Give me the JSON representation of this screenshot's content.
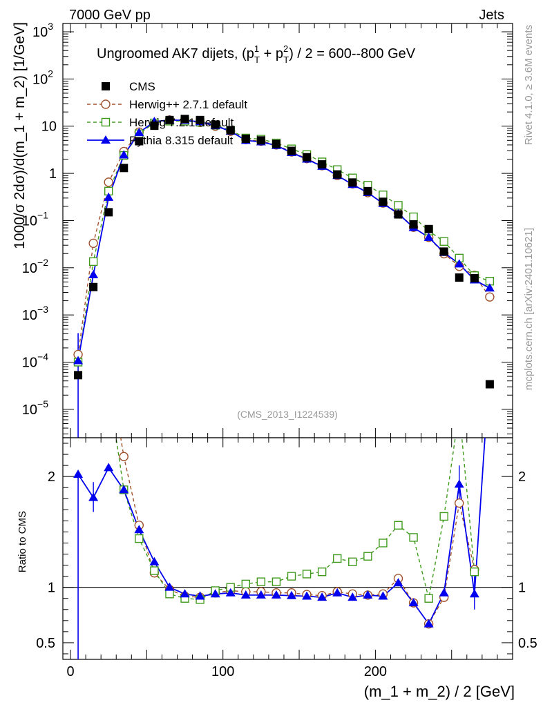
{
  "chart_data": {
    "type": "scatter",
    "header_left": "7000 GeV pp",
    "header_right": "Jets",
    "title": "Ungroomed AK7 dijets, (p",
    "title_sup1": "1",
    "title_sub1": "T",
    "title_mid": " + p",
    "title_sup2": "2",
    "title_sub2": "T",
    "title_end": ") / 2 = 600--800 GeV",
    "analysis": "(CMS_2013_I1224539)",
    "side_label_top": "Rivet 4.1.0, ≥ 3.6M events",
    "side_label_bottom": "mcplots.cern.ch [arXiv:2401.10621]",
    "xlabel": "(m_1 + m_2) / 2 [GeV]",
    "ylabel_main": "1000/σ   2dσ)/d(m_1 + m_2) [1/GeV]",
    "ylabel_ratio": "Ratio to CMS",
    "xlim": [
      -5,
      290
    ],
    "ylim_main": [
      2.5e-06,
      1500
    ],
    "ylim_ratio": [
      0.35,
      2.35
    ],
    "x_ticks": [
      {
        "value": 0,
        "label": "0"
      },
      {
        "value": 100,
        "label": "100"
      },
      {
        "value": 200,
        "label": "200"
      }
    ],
    "y_ticks_main": [
      {
        "value": 1e-05,
        "base": "10",
        "exp": "−5"
      },
      {
        "value": 0.0001,
        "base": "10",
        "exp": "−4"
      },
      {
        "value": 0.001,
        "base": "10",
        "exp": "−3"
      },
      {
        "value": 0.01,
        "base": "10",
        "exp": "−2"
      },
      {
        "value": 0.1,
        "base": "10",
        "exp": "−1"
      },
      {
        "value": 1,
        "base": "1",
        "exp": ""
      },
      {
        "value": 10,
        "base": "10",
        "exp": ""
      },
      {
        "value": 100,
        "base": "10",
        "exp": "2"
      },
      {
        "value": 1000,
        "base": "10",
        "exp": "3"
      }
    ],
    "y_ticks_ratio": [
      {
        "value": 0.5,
        "label": "0.5"
      },
      {
        "value": 1,
        "label": "1"
      },
      {
        "value": 2,
        "label": "2"
      }
    ],
    "x": [
      5,
      15,
      25,
      35,
      45,
      55,
      65,
      75,
      85,
      95,
      105,
      115,
      125,
      135,
      145,
      155,
      165,
      175,
      185,
      195,
      205,
      215,
      225,
      235,
      245,
      255,
      265,
      275
    ],
    "series": [
      {
        "name": "CMS",
        "marker": "filled-square",
        "color": "#000000",
        "values": [
          5.3e-05,
          0.0039,
          0.15,
          1.3,
          4.8,
          10.2,
          13.5,
          14.2,
          13.5,
          10.8,
          8.2,
          5.4,
          5.0,
          4.2,
          3.0,
          2.2,
          1.55,
          0.95,
          0.64,
          0.42,
          0.25,
          0.135,
          0.083,
          0.066,
          0.022,
          0.0062,
          0.006,
          3.4e-05
        ]
      },
      {
        "name": "Herwig++ 2.7.1 default",
        "marker": "open-circle",
        "line": "dashed",
        "color": "#a0522d",
        "values": [
          0.000145,
          0.033,
          0.65,
          2.9,
          7.5,
          11.5,
          13.5,
          13.0,
          12.0,
          10.0,
          7.8,
          5.2,
          4.8,
          4.0,
          2.85,
          2.05,
          1.45,
          0.9,
          0.6,
          0.39,
          0.235,
          0.145,
          0.072,
          0.044,
          0.0198,
          0.0107,
          0.0069,
          0.0024
        ]
      },
      {
        "name": "Herwig 7.2.1 default",
        "marker": "open-square",
        "line": "dashed",
        "color": "#3f9a1c",
        "values": [
          0.0001,
          0.0135,
          0.42,
          2.4,
          6.9,
          11.7,
          12.8,
          12.8,
          12.1,
          10.5,
          8.2,
          5.6,
          5.3,
          4.4,
          3.3,
          2.5,
          1.75,
          1.2,
          0.8,
          0.56,
          0.35,
          0.21,
          0.12,
          0.06,
          0.036,
          0.016,
          0.0068,
          0.0052
        ]
      },
      {
        "name": "Pythia 8.315 default",
        "marker": "filled-triangle",
        "line": "solid",
        "color": "#0000ee",
        "values": [
          0.000107,
          0.0071,
          0.31,
          2.45,
          7.3,
          12.5,
          13.5,
          13.3,
          12.4,
          10.2,
          7.8,
          5.0,
          4.65,
          3.9,
          2.75,
          2.0,
          1.41,
          0.9,
          0.58,
          0.39,
          0.23,
          0.14,
          0.071,
          0.044,
          0.021,
          0.012,
          0.0055,
          0.0037
        ]
      }
    ],
    "ratio": {
      "reference": "CMS",
      "series": [
        {
          "name": "Herwig++ 2.7.1 default",
          "values": [
            null,
            3.2,
            3.0,
            2.18,
            1.56,
            1.13,
            0.98,
            0.92,
            0.91,
            0.95,
            0.97,
            0.96,
            0.96,
            0.95,
            0.95,
            0.935,
            0.925,
            0.96,
            0.94,
            0.93,
            0.94,
            1.08,
            0.86,
            0.67,
            0.91,
            1.76,
            1.16,
            null
          ]
        },
        {
          "name": "Herwig 7.2.1 default",
          "values": [
            null,
            3.2,
            2.8,
            1.88,
            1.44,
            1.15,
            0.94,
            0.9,
            0.89,
            0.97,
            1.0,
            1.03,
            1.05,
            1.05,
            1.1,
            1.12,
            1.14,
            1.26,
            1.23,
            1.28,
            1.4,
            1.56,
            1.45,
            0.9,
            1.64,
            2.6,
            1.14,
            null
          ]
        },
        {
          "name": "Pythia 8.315 default",
          "values": [
            2.02,
            1.81,
            2.08,
            1.88,
            1.52,
            1.23,
            1.0,
            0.94,
            0.92,
            0.94,
            0.95,
            0.93,
            0.93,
            0.93,
            0.925,
            0.92,
            0.91,
            0.95,
            0.91,
            0.93,
            0.92,
            1.04,
            0.86,
            0.67,
            0.95,
            1.93,
            0.94,
            3.0
          ]
        }
      ]
    }
  }
}
